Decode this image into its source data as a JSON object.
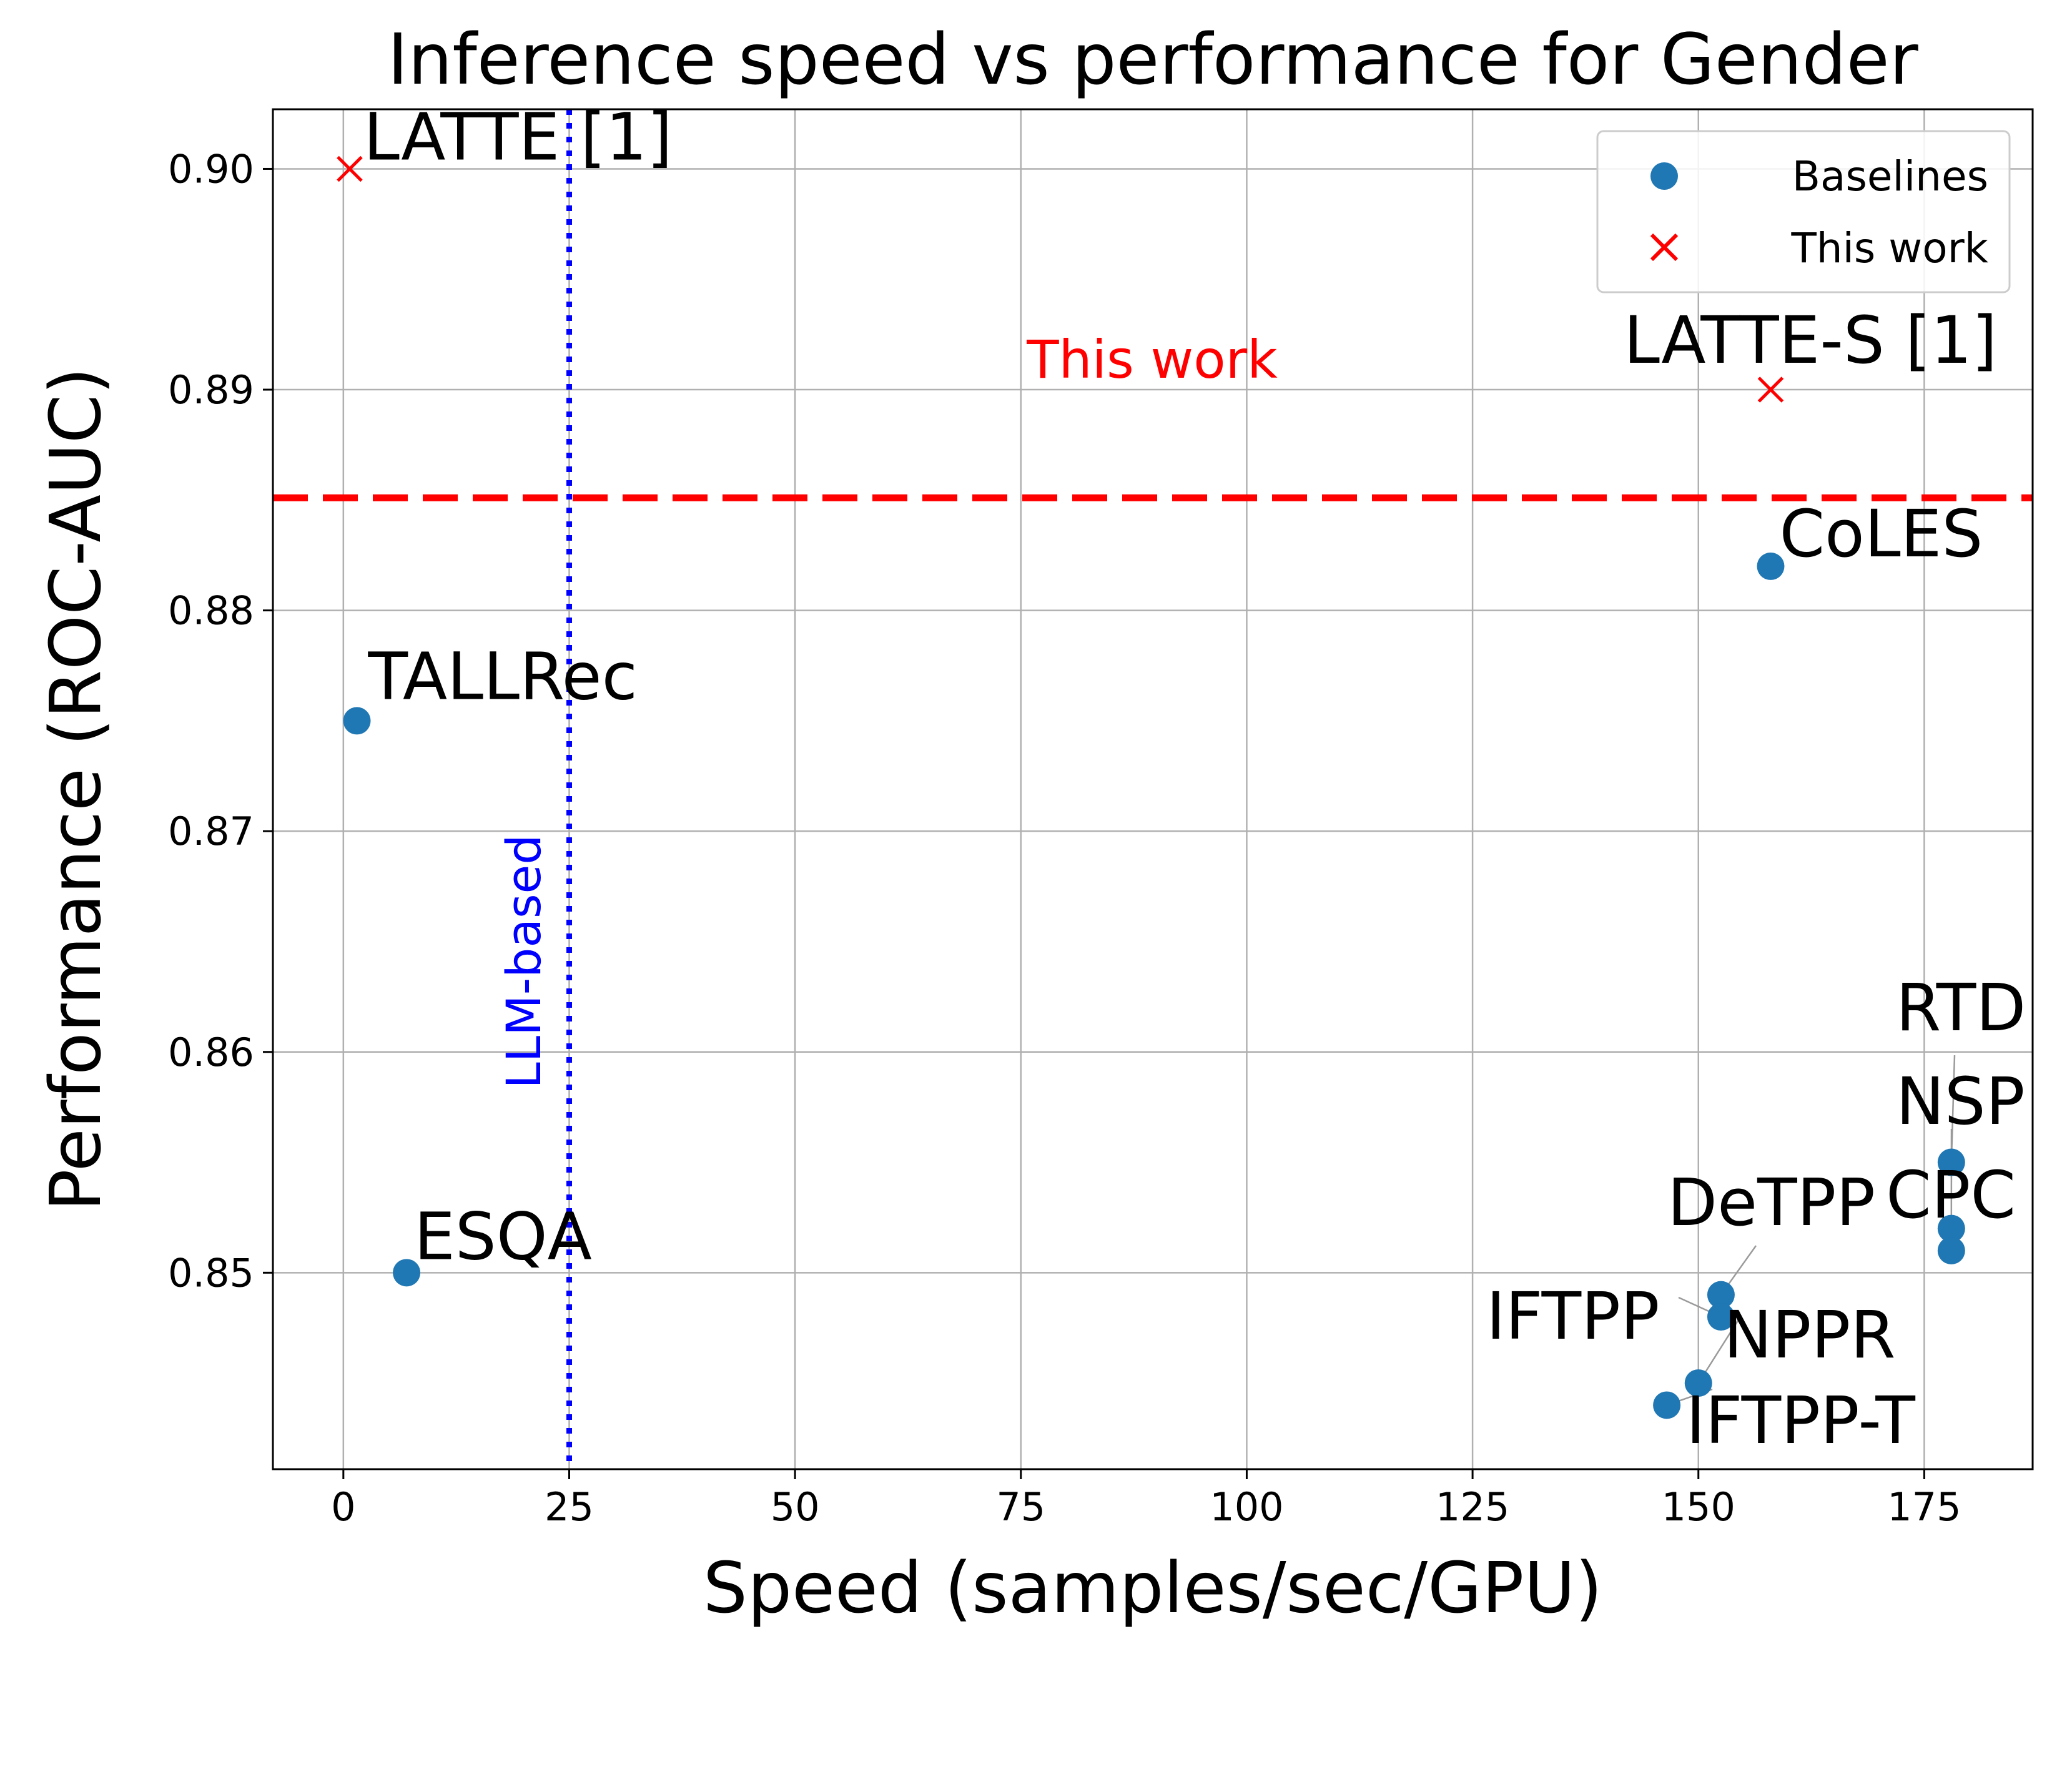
{
  "chart_data": {
    "type": "scatter",
    "title": "Inference speed vs performance for Gender",
    "xlabel": "Speed (samples/sec/GPU)",
    "ylabel": "Performance (ROC-AUC)",
    "xlim": [
      -7.8,
      187
    ],
    "ylim": [
      0.8411,
      0.9027
    ],
    "xticks": [
      0,
      25,
      50,
      75,
      100,
      125,
      150,
      175
    ],
    "yticks": [
      0.85,
      0.86,
      0.87,
      0.88,
      0.89,
      0.9
    ],
    "ytick_labels": [
      "0.85",
      "0.86",
      "0.87",
      "0.88",
      "0.89",
      "0.90"
    ],
    "grid": true,
    "legend_position": "top-right",
    "colors": {
      "baselines": "#1f77b4",
      "this_work": "#ff0000",
      "llm_line": "#0000ff"
    },
    "series": [
      {
        "name": "Baselines",
        "marker": "circle",
        "points": [
          {
            "label": "TALLRec",
            "x": 1.5,
            "y": 0.875
          },
          {
            "label": "ESQA",
            "x": 7,
            "y": 0.85
          },
          {
            "label": "CoLES",
            "x": 158,
            "y": 0.882
          },
          {
            "label": "RTD",
            "x": 178,
            "y": 0.855
          },
          {
            "label": "NSP",
            "x": 178,
            "y": 0.852
          },
          {
            "label": "CPC",
            "x": 178,
            "y": 0.851
          },
          {
            "label": "DeTPP",
            "x": 152.5,
            "y": 0.849
          },
          {
            "label": "IFTPP",
            "x": 152.5,
            "y": 0.848
          },
          {
            "label": "NPPR",
            "x": 150,
            "y": 0.845
          },
          {
            "label": "IFTPP-T",
            "x": 146.5,
            "y": 0.844
          }
        ]
      },
      {
        "name": "This work",
        "marker": "x",
        "points": [
          {
            "label": "LATTE [1]",
            "x": 0.7,
            "y": 0.9
          },
          {
            "label": "LATTE-S [1]",
            "x": 158,
            "y": 0.89
          }
        ]
      }
    ],
    "reference_lines": [
      {
        "orientation": "horizontal",
        "value": 0.8851,
        "style": "dashed",
        "label": "This work"
      },
      {
        "orientation": "vertical",
        "value": 25,
        "style": "dotted",
        "label": "LLM-based"
      }
    ]
  }
}
